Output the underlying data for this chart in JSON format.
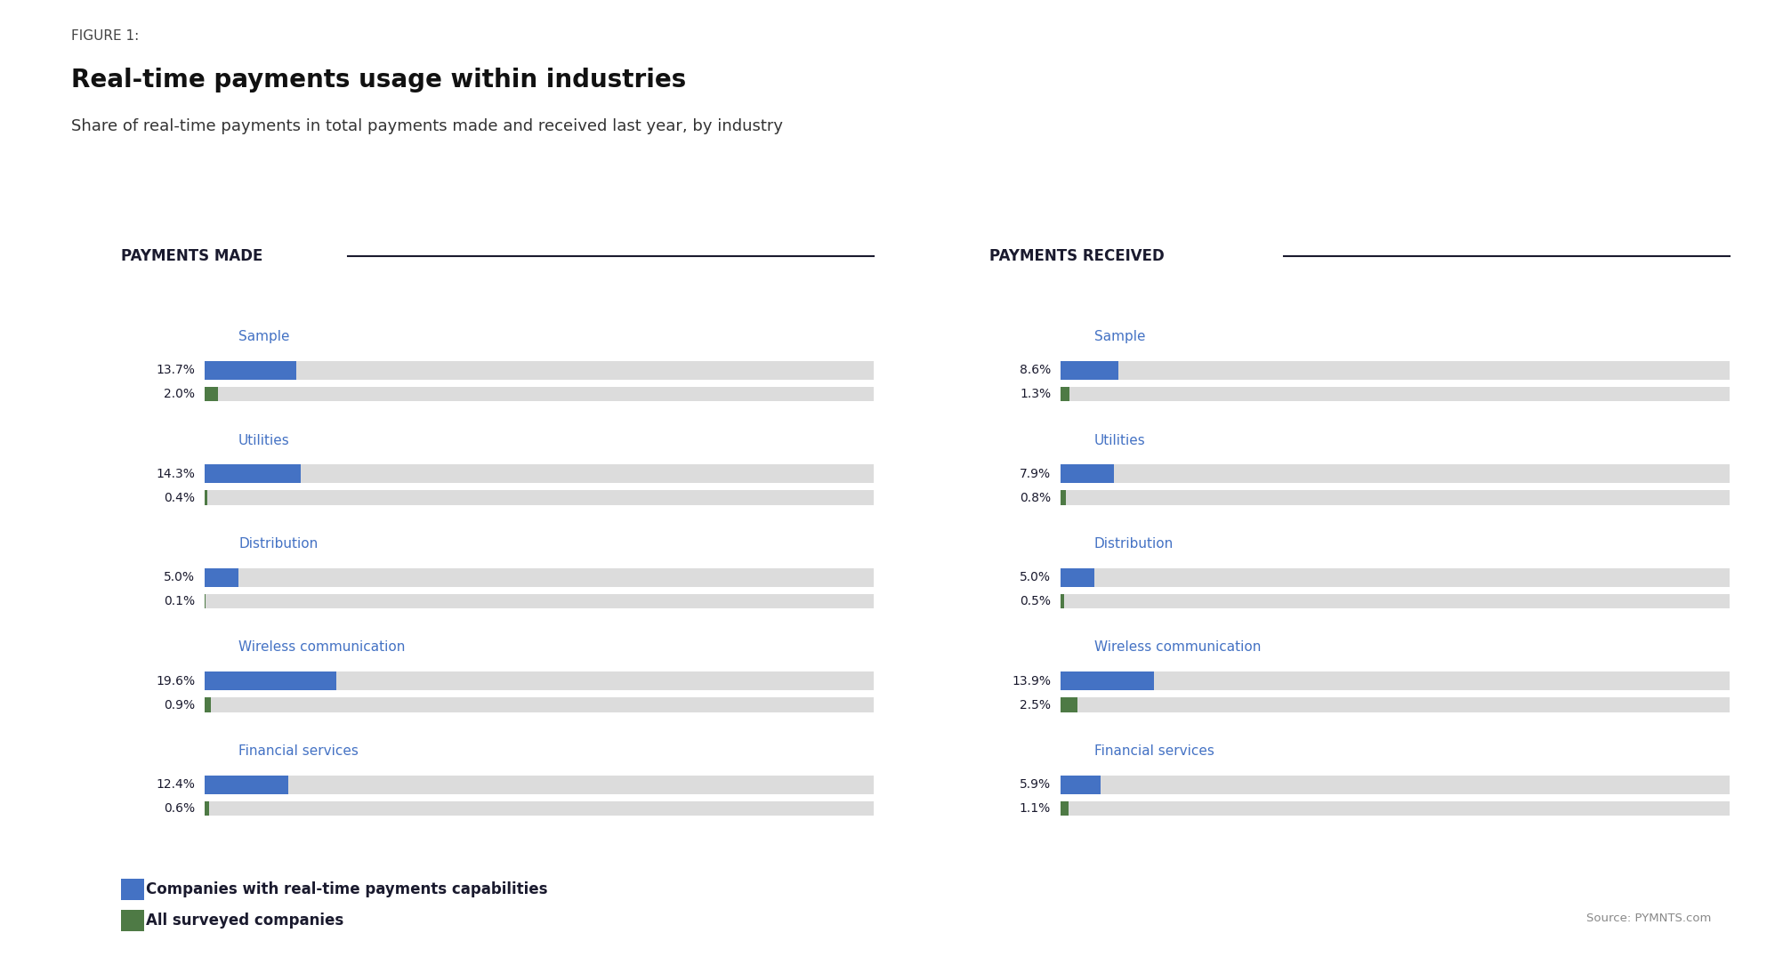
{
  "figure_label": "FIGURE 1:",
  "title": "Real-time payments usage within industries",
  "subtitle": "Share of real-time payments in total payments made and received last year, by industry",
  "source": "Source: PYMNTS.com",
  "left_section_title": "PAYMENTS MADE",
  "right_section_title": "PAYMENTS RECEIVED",
  "categories": [
    "Sample",
    "Utilities",
    "Distribution",
    "Wireless communication",
    "Financial services"
  ],
  "made_blue": [
    13.7,
    14.3,
    5.0,
    19.6,
    12.4
  ],
  "made_green": [
    2.0,
    0.4,
    0.1,
    0.9,
    0.6
  ],
  "received_blue": [
    8.6,
    7.9,
    5.0,
    13.9,
    5.9
  ],
  "received_green": [
    1.3,
    0.8,
    0.5,
    2.5,
    1.1
  ],
  "made_blue_labels": [
    "13.7%",
    "14.3%",
    "5.0%",
    "19.6%",
    "12.4%"
  ],
  "made_green_labels": [
    "2.0%",
    "0.4%",
    "0.1%",
    "0.9%",
    "0.6%"
  ],
  "received_blue_labels": [
    "8.6%",
    "7.9%",
    "5.0%",
    "13.9%",
    "5.9%"
  ],
  "received_green_labels": [
    "1.3%",
    "0.8%",
    "0.5%",
    "2.5%",
    "1.1%"
  ],
  "bar_max": 100,
  "blue_color": "#4472C4",
  "green_color": "#4E7A45",
  "bg_bar_color": "#DCDCDC",
  "bg_color": "#FFFFFF",
  "category_color": "#4472C4",
  "section_title_color": "#1A1A2E",
  "label_color": "#1A1A2E",
  "figure_label_color": "#444444",
  "subtitle_color": "#333333",
  "source_color": "#888888",
  "legend_blue_label": "Companies with real-time payments capabilities",
  "legend_green_label": "All surveyed companies"
}
